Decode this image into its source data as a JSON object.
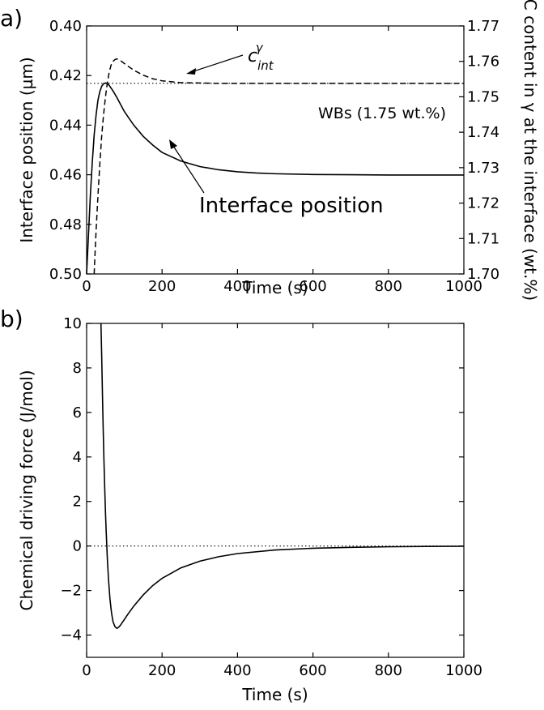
{
  "chart_data": [
    {
      "panel_label": "a)",
      "type": "line",
      "xlabel": "Time (s)",
      "ylabel_left": "Interface position (µm)",
      "ylabel_right": "C content in γ at the interface (wt.%)",
      "xlim": [
        0,
        1000
      ],
      "ylim_left": [
        0.4,
        0.5
      ],
      "ylim_left_inverted": true,
      "ylim_right": [
        1.7,
        1.77
      ],
      "x_ticks": [
        "0",
        "200",
        "400",
        "600",
        "800",
        "1000"
      ],
      "y_ticks_left": [
        "0.40",
        "0.42",
        "0.44",
        "0.46",
        "0.48",
        "0.50"
      ],
      "y_ticks_right": [
        "1.70",
        "1.71",
        "1.72",
        "1.73",
        "1.74",
        "1.75",
        "1.76",
        "1.77"
      ],
      "grid": false,
      "series": [
        {
          "name": "Interface position",
          "axis": "left",
          "style": "solid",
          "x": [
            0,
            5,
            10,
            15,
            20,
            25,
            30,
            35,
            40,
            45,
            50,
            55,
            60,
            70,
            80,
            100,
            125,
            150,
            175,
            200,
            250,
            300,
            350,
            400,
            450,
            500,
            600,
            700,
            800,
            900,
            1000
          ],
          "y": [
            0.5,
            0.484,
            0.468,
            0.455,
            0.444,
            0.436,
            0.43,
            0.4265,
            0.4243,
            0.4233,
            0.423,
            0.4232,
            0.424,
            0.4262,
            0.4288,
            0.4345,
            0.44,
            0.4445,
            0.448,
            0.451,
            0.4545,
            0.4567,
            0.458,
            0.4588,
            0.4593,
            0.4596,
            0.4599,
            0.46,
            0.4601,
            0.4601,
            0.4601
          ]
        },
        {
          "name": "c_int^γ",
          "axis": "right",
          "style": "dashed",
          "x": [
            20,
            22,
            25,
            30,
            35,
            40,
            45,
            50,
            55,
            60,
            65,
            70,
            75,
            80,
            90,
            100,
            125,
            150,
            175,
            200,
            250,
            300,
            350,
            400,
            450,
            500,
            600,
            700,
            800,
            900,
            1000
          ],
          "y": [
            1.7,
            1.705,
            1.712,
            1.722,
            1.731,
            1.739,
            1.745,
            1.75,
            1.754,
            1.757,
            1.759,
            1.76,
            1.7605,
            1.7607,
            1.7602,
            1.7594,
            1.7575,
            1.7561,
            1.7551,
            1.7545,
            1.754,
            1.7539,
            1.7538,
            1.7538,
            1.7538,
            1.7538,
            1.7538,
            1.7538,
            1.7538,
            1.7538,
            1.7538
          ]
        }
      ],
      "reference_line": {
        "axis": "right",
        "value": 1.7538,
        "style": "dotted",
        "label": "WBs (1.75 wt.%)"
      },
      "annotations": [
        {
          "text": "Interface position",
          "points_to": "Interface position"
        },
        {
          "text": "c_int^γ",
          "points_to": "c_int^γ"
        }
      ]
    },
    {
      "panel_label": "b)",
      "type": "line",
      "xlabel": "Time (s)",
      "ylabel": "Chemical driving force (J/mol)",
      "xlim": [
        0,
        1000
      ],
      "ylim": [
        -5,
        10
      ],
      "x_ticks": [
        "0",
        "200",
        "400",
        "600",
        "800",
        "1000"
      ],
      "y_ticks": [
        "−4",
        "−2",
        "0",
        "2",
        "4",
        "6",
        "8",
        "10"
      ],
      "grid": false,
      "series": [
        {
          "name": "",
          "style": "solid",
          "x": [
            38,
            40,
            42,
            44,
            46,
            48,
            50,
            52,
            55,
            58,
            62,
            66,
            70,
            75,
            80,
            85,
            90,
            100,
            110,
            125,
            150,
            175,
            200,
            250,
            300,
            350,
            400,
            500,
            600,
            700,
            800,
            900,
            1000
          ],
          "y": [
            10,
            8.5,
            6.8,
            5.2,
            3.8,
            2.6,
            1.5,
            0.6,
            -0.6,
            -1.5,
            -2.4,
            -3.0,
            -3.4,
            -3.62,
            -3.7,
            -3.65,
            -3.55,
            -3.3,
            -3.05,
            -2.7,
            -2.2,
            -1.78,
            -1.45,
            -0.98,
            -0.68,
            -0.48,
            -0.34,
            -0.18,
            -0.1,
            -0.06,
            -0.035,
            -0.02,
            -0.01
          ]
        }
      ],
      "reference_line": {
        "value": 0,
        "style": "dotted"
      }
    }
  ]
}
